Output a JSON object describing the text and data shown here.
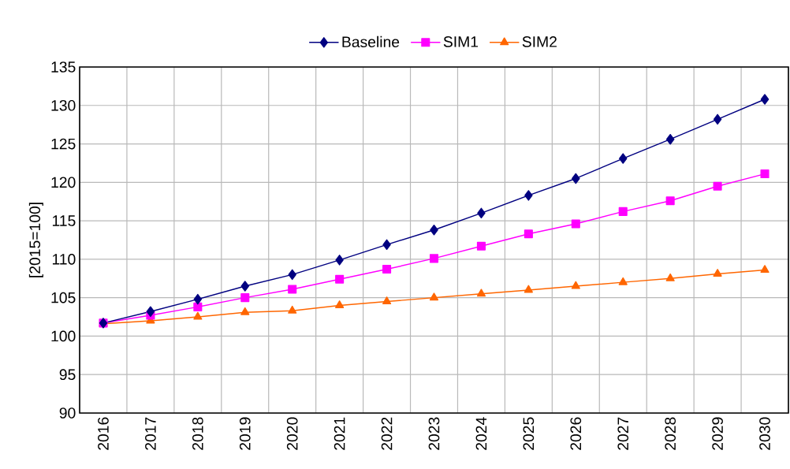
{
  "chart_data": {
    "type": "line",
    "ylabel": "[2015=100]",
    "categories": [
      "2016",
      "2017",
      "2018",
      "2019",
      "2020",
      "2021",
      "2022",
      "2023",
      "2024",
      "2025",
      "2026",
      "2027",
      "2028",
      "2029",
      "2030"
    ],
    "series": [
      {
        "name": "Baseline",
        "color": "#000080",
        "marker": "diamond",
        "values": [
          101.7,
          103.2,
          104.8,
          106.5,
          108.0,
          109.9,
          111.9,
          113.8,
          116.0,
          118.3,
          120.5,
          123.1,
          125.6,
          128.2,
          130.8
        ]
      },
      {
        "name": "SIM1",
        "color": "#ff00ff",
        "marker": "square",
        "values": [
          101.7,
          102.7,
          103.8,
          105.0,
          106.1,
          107.4,
          108.7,
          110.1,
          111.7,
          113.3,
          114.6,
          116.2,
          117.6,
          119.5,
          121.1
        ]
      },
      {
        "name": "SIM2",
        "color": "#ff6600",
        "marker": "triangle",
        "values": [
          101.6,
          102.0,
          102.5,
          103.1,
          103.3,
          104.0,
          104.5,
          105.0,
          105.5,
          106.0,
          106.5,
          107.0,
          107.5,
          108.1,
          108.6
        ]
      }
    ],
    "ylim": [
      90,
      135
    ],
    "yticks": [
      90,
      95,
      100,
      105,
      110,
      115,
      120,
      125,
      130,
      135
    ],
    "grid": true,
    "legend": "top",
    "line_style": "solid"
  }
}
